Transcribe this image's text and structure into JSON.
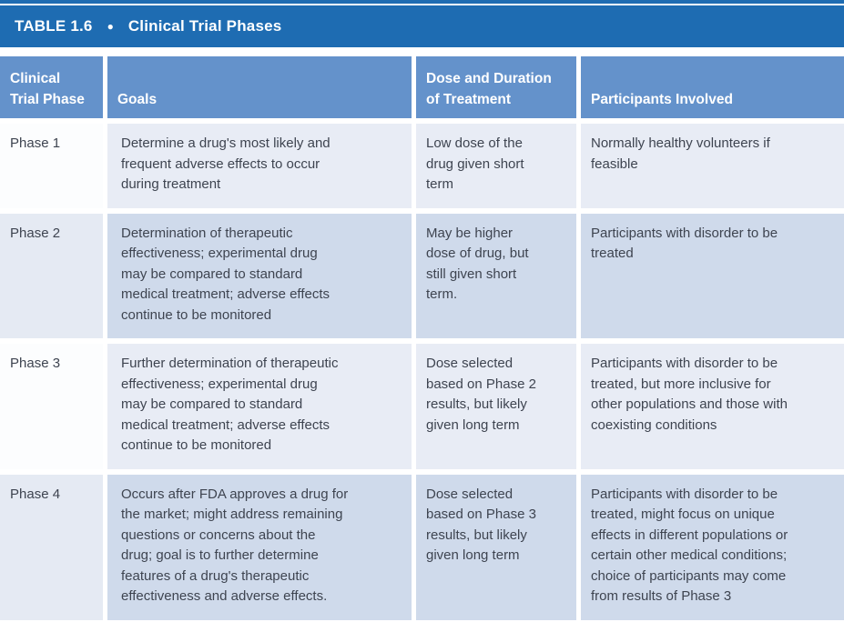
{
  "title_bar": {
    "label": "TABLE 1.6",
    "bullet": "●",
    "title": "Clinical Trial Phases"
  },
  "columns": {
    "phase": "Clinical\nTrial Phase",
    "goals": "Goals",
    "dose": "Dose and Duration\nof Treatment",
    "participants": "Participants Involved"
  },
  "rows": [
    {
      "phase": "Phase 1",
      "goals": "Determine a drug's most likely and\nfrequent adverse effects to occur\nduring treatment",
      "dose": "Low dose of the\ndrug given short\nterm",
      "participants": "Normally healthy volunteers if\nfeasible"
    },
    {
      "phase": "Phase 2",
      "goals": "Determination of therapeutic\neffectiveness; experimental drug\nmay be compared to standard\nmedical treatment; adverse effects\ncontinue to be monitored",
      "dose": "May be higher\ndose of drug, but\nstill given short\nterm.",
      "participants": "Participants with disorder to be\ntreated"
    },
    {
      "phase": "Phase 3",
      "goals": "Further determination of therapeutic\neffectiveness; experimental drug\nmay be compared to standard\nmedical treatment; adverse effects\ncontinue to be monitored",
      "dose": "Dose selected\nbased on Phase 2\nresults, but likely\ngiven long term",
      "participants": "Participants with disorder to be\ntreated, but more inclusive for\nother populations and those with\ncoexisting conditions"
    },
    {
      "phase": "Phase 4",
      "goals": "Occurs after FDA approves a drug for\nthe market; might address remaining\nquestions or concerns about the\ndrug; goal is to further determine\nfeatures of a drug's therapeutic\neffectiveness and adverse effects.",
      "dose": "Dose selected\nbased on Phase 3\nresults, but likely\ngiven long term",
      "participants": "Participants with disorder to be\ntreated, might focus on unique\neffects in different populations or\ncertain other medical conditions;\nchoice of participants may come\nfrom results of Phase 3"
    }
  ],
  "colors": {
    "title_bar_blue": "#1e6cb2",
    "header_blue": "#6492cb",
    "row_light": "#e8ecf5",
    "row_light_phase": "#fcfdfe",
    "row_dark": "#cfdaeb",
    "row_dark_phase": "#e5eaf3",
    "body_text": "#3e4450",
    "header_text": "#ffffff"
  }
}
